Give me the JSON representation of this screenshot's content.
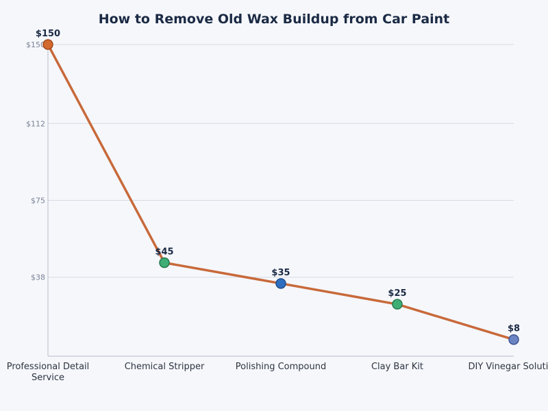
{
  "chart_data": {
    "type": "line",
    "title": "How to Remove Old Wax Buildup from Car Paint",
    "categories": [
      "Professional Detail Service",
      "Chemical Stripper",
      "Polishing Compound",
      "Clay Bar Kit",
      "DIY Vinegar Solution"
    ],
    "category_lines": [
      [
        "Professional Detail",
        "Service"
      ],
      [
        "Chemical Stripper"
      ],
      [
        "Polishing Compound"
      ],
      [
        "Clay Bar Kit"
      ],
      [
        "DIY Vinegar Solution"
      ]
    ],
    "values": [
      150,
      45,
      35,
      25,
      8
    ],
    "data_labels": [
      "$150",
      "$45",
      "$35",
      "$25",
      "$8"
    ],
    "point_colors": [
      "#d2692e",
      "#3fae74",
      "#2f6fbf",
      "#3fae74",
      "#6b84c4"
    ],
    "point_stroke_colors": [
      "#a4481b",
      "#247a4d",
      "#1f4d8a",
      "#247a4d",
      "#3f5594"
    ],
    "line_color": "#c8693a",
    "yticks": [
      38,
      75,
      112,
      150
    ],
    "ytick_labels": [
      "$38",
      "$75",
      "$112",
      "$150"
    ],
    "ylim": [
      0,
      150
    ],
    "xlabel": "",
    "ylabel": "",
    "grid": true
  }
}
